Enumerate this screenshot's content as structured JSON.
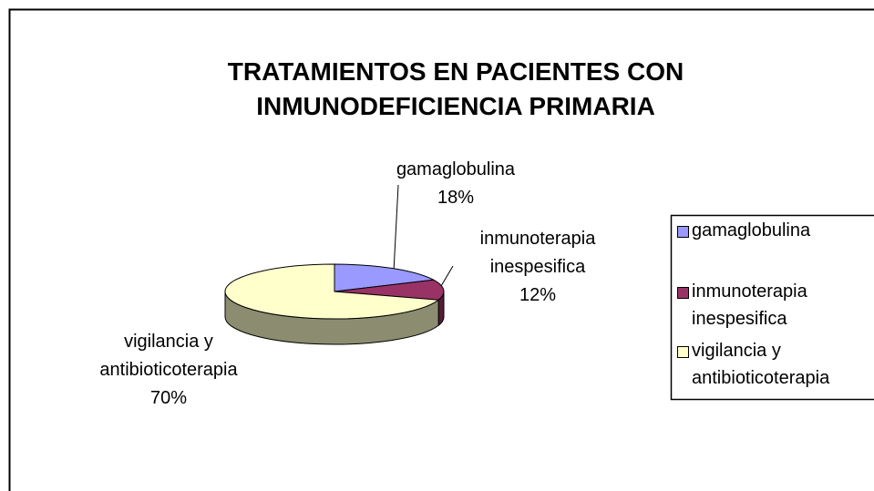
{
  "chart_data": {
    "type": "pie",
    "title": "TRATAMIENTOS EN PACIENTES CON INMUNODEFICIENCIA PRIMARIA",
    "categories": [
      "gamaglobulina",
      "inmunoterapia inespesifica",
      "vigilancia y antibioticoterapia"
    ],
    "values": [
      18,
      12,
      70
    ],
    "value_labels": [
      "18%",
      "12%",
      "70%"
    ],
    "colors": [
      "#9999ff",
      "#993366",
      "#ffffcc"
    ],
    "legend": "right",
    "view": "3d"
  }
}
